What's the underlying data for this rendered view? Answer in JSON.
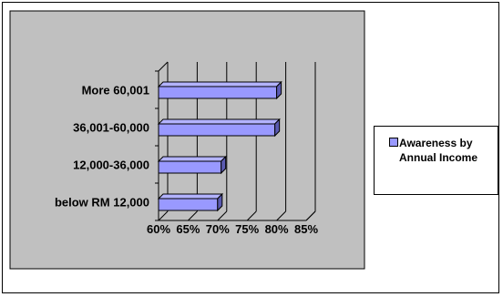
{
  "chart_data": {
    "type": "bar",
    "orientation": "horizontal",
    "categories": [
      "below RM 12,000",
      "12,000-36,000",
      "36,001-60,000",
      "More 60,001"
    ],
    "series": [
      {
        "name": "Awareness by Annual Income",
        "values": [
          0.7,
          0.706,
          0.797,
          0.8
        ],
        "color": "#9999ff"
      }
    ],
    "xlim": [
      0.6,
      0.85
    ],
    "xticks": [
      "60%",
      "65%",
      "70%",
      "75%",
      "80%",
      "85%"
    ],
    "grid": true,
    "legend_position": "right",
    "plot_background": "#c0c0c0",
    "title": "",
    "xlabel": "",
    "ylabel": ""
  }
}
